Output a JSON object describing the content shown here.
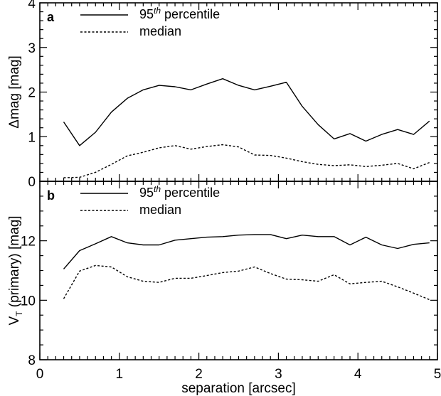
{
  "chart_data": [
    {
      "panel": "a",
      "type": "line",
      "panel_label": "a",
      "xlabel": "separation [arcsec]",
      "ylabel": "Δmag [mag]",
      "xlim": [
        0,
        5
      ],
      "ylim": [
        0,
        4
      ],
      "x_ticks": [
        0,
        1,
        2,
        3,
        4,
        5
      ],
      "x_tick_labels": [
        "0",
        "1",
        "2",
        "3",
        "4",
        "5"
      ],
      "x_tick_labels_shown": false,
      "y_ticks": [
        0,
        1,
        2,
        3,
        4
      ],
      "y_tick_labels": [
        "0",
        "1",
        "2",
        "3",
        "4"
      ],
      "y_minor_step": 0.2,
      "x_minor_step": 0.1,
      "grid": false,
      "legend_position": "top-left",
      "x": [
        0.3,
        0.5,
        0.7,
        0.9,
        1.1,
        1.3,
        1.5,
        1.7,
        1.9,
        2.1,
        2.3,
        2.5,
        2.7,
        2.9,
        3.1,
        3.3,
        3.5,
        3.7,
        3.9,
        4.1,
        4.3,
        4.5,
        4.7,
        4.9
      ],
      "series": [
        {
          "name": "95th percentile",
          "name_base": "95",
          "name_sup": "th",
          "name_suffix": " percentile",
          "style": "solid",
          "values": [
            1.33,
            0.8,
            1.1,
            1.55,
            1.86,
            2.05,
            2.15,
            2.12,
            2.05,
            2.18,
            2.3,
            2.15,
            2.05,
            2.13,
            2.22,
            1.68,
            1.27,
            0.95,
            1.07,
            0.9,
            1.05,
            1.16,
            1.05,
            1.35
          ]
        },
        {
          "name": "median",
          "style": "dashed",
          "values": [
            0.08,
            0.09,
            0.2,
            0.38,
            0.57,
            0.65,
            0.75,
            0.8,
            0.72,
            0.78,
            0.82,
            0.77,
            0.59,
            0.58,
            0.52,
            0.44,
            0.38,
            0.35,
            0.37,
            0.33,
            0.36,
            0.4,
            0.28,
            0.42
          ]
        }
      ]
    },
    {
      "panel": "b",
      "type": "line",
      "panel_label": "b",
      "xlabel": "separation [arcsec]",
      "ylabel": "V_T (primary) [mag]",
      "ylabel_main": "V",
      "ylabel_sub": "T",
      "ylabel_rest": " (primary) [mag]",
      "xlim": [
        0,
        5
      ],
      "ylim": [
        8,
        14
      ],
      "x_ticks": [
        0,
        1,
        2,
        3,
        4,
        5
      ],
      "x_tick_labels": [
        "0",
        "1",
        "2",
        "3",
        "4",
        "5"
      ],
      "y_ticks": [
        8,
        10,
        12
      ],
      "y_tick_labels": [
        "8",
        "10",
        "12"
      ],
      "y_minor_step": 0.5,
      "x_minor_step": 0.1,
      "grid": false,
      "legend_position": "top-left",
      "x": [
        0.3,
        0.5,
        0.7,
        0.9,
        1.1,
        1.3,
        1.5,
        1.7,
        1.9,
        2.1,
        2.3,
        2.5,
        2.7,
        2.9,
        3.1,
        3.3,
        3.5,
        3.7,
        3.9,
        4.1,
        4.3,
        4.5,
        4.7,
        4.9
      ],
      "series": [
        {
          "name": "95th percentile",
          "name_base": "95",
          "name_sup": "th",
          "name_suffix": " percentile",
          "style": "solid",
          "values": [
            11.05,
            11.67,
            11.9,
            12.14,
            11.93,
            11.86,
            11.86,
            12.02,
            12.07,
            12.12,
            12.14,
            12.19,
            12.21,
            12.21,
            12.07,
            12.19,
            12.14,
            12.14,
            11.86,
            12.12,
            11.86,
            11.74,
            11.88,
            11.93
          ]
        },
        {
          "name": "median",
          "style": "dashed",
          "values": [
            10.05,
            10.98,
            11.17,
            11.12,
            10.79,
            10.64,
            10.6,
            10.74,
            10.74,
            10.83,
            10.93,
            10.98,
            11.12,
            10.9,
            10.71,
            10.69,
            10.64,
            10.86,
            10.55,
            10.6,
            10.64,
            10.45,
            10.24,
            10.02
          ]
        }
      ]
    }
  ]
}
